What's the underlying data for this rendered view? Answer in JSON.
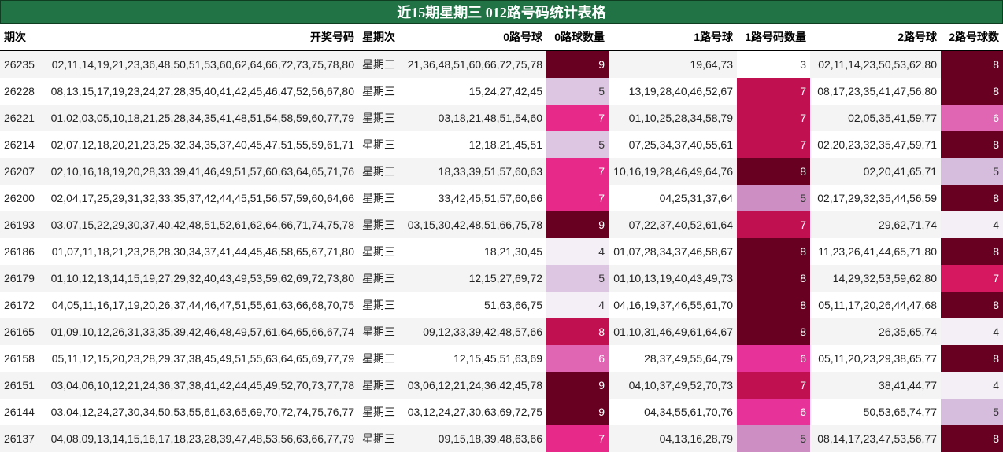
{
  "title": "近15期星期三 012路号码统计表格",
  "headers": [
    "期次",
    "开奖号码",
    "星期次",
    "0路号球",
    "0路球数量",
    "1路号球",
    "1路号码数量",
    "2路号球",
    "2路号球数"
  ],
  "count_colors": {
    "3": "#ffffff",
    "4": "#f4eff7",
    "5": "#dcc6e2",
    "6": "#e066b4",
    "7": "#e7298a",
    "8": "#c0104f",
    "9": "#670021"
  },
  "col2_count_colors": {
    "3": "#ffffff",
    "4": "#f4eff7",
    "5": "#d6bcdd",
    "6": "#e066b4",
    "7": "#d5185f",
    "8": "#670021",
    "9": "#670021"
  },
  "col1_count_colors": {
    "3": "#ffffff",
    "4": "#f4eff7",
    "5": "#cd8ec4",
    "6": "#e7329a",
    "7": "#c0104f",
    "8": "#670021",
    "9": "#670021"
  },
  "rows": [
    {
      "period": "26235",
      "numbers": "02,11,14,19,21,23,36,48,50,51,53,60,62,64,66,72,73,75,78,80",
      "weekday": "星期三",
      "r0": "21,36,48,51,60,66,72,75,78",
      "c0": "9",
      "r1": "19,64,73",
      "c1": "3",
      "r2": "02,11,14,23,50,53,62,80",
      "c2": "8"
    },
    {
      "period": "26228",
      "numbers": "08,13,15,17,19,23,24,27,28,35,40,41,42,45,46,47,52,56,67,80",
      "weekday": "星期三",
      "r0": "15,24,27,42,45",
      "c0": "5",
      "r1": "13,19,28,40,46,52,67",
      "c1": "7",
      "r2": "08,17,23,35,41,47,56,80",
      "c2": "8"
    },
    {
      "period": "26221",
      "numbers": "01,02,03,05,10,18,21,25,28,34,35,41,48,51,54,58,59,60,77,79",
      "weekday": "星期三",
      "r0": "03,18,21,48,51,54,60",
      "c0": "7",
      "r1": "01,10,25,28,34,58,79",
      "c1": "7",
      "r2": "02,05,35,41,59,77",
      "c2": "6"
    },
    {
      "period": "26214",
      "numbers": "02,07,12,18,20,21,23,25,32,34,35,37,40,45,47,51,55,59,61,71",
      "weekday": "星期三",
      "r0": "12,18,21,45,51",
      "c0": "5",
      "r1": "07,25,34,37,40,55,61",
      "c1": "7",
      "r2": "02,20,23,32,35,47,59,71",
      "c2": "8"
    },
    {
      "period": "26207",
      "numbers": "02,10,16,18,19,20,28,33,39,41,46,49,51,57,60,63,64,65,71,76",
      "weekday": "星期三",
      "r0": "18,33,39,51,57,60,63",
      "c0": "7",
      "r1": "10,16,19,28,46,49,64,76",
      "c1": "8",
      "r2": "02,20,41,65,71",
      "c2": "5"
    },
    {
      "period": "26200",
      "numbers": "02,04,17,25,29,31,32,33,35,37,42,44,45,51,56,57,59,60,64,66",
      "weekday": "星期三",
      "r0": "33,42,45,51,57,60,66",
      "c0": "7",
      "r1": "04,25,31,37,64",
      "c1": "5",
      "r2": "02,17,29,32,35,44,56,59",
      "c2": "8"
    },
    {
      "period": "26193",
      "numbers": "03,07,15,22,29,30,37,40,42,48,51,52,61,62,64,66,71,74,75,78",
      "weekday": "星期三",
      "r0": "03,15,30,42,48,51,66,75,78",
      "c0": "9",
      "r1": "07,22,37,40,52,61,64",
      "c1": "7",
      "r2": "29,62,71,74",
      "c2": "4"
    },
    {
      "period": "26186",
      "numbers": "01,07,11,18,21,23,26,28,30,34,37,41,44,45,46,58,65,67,71,80",
      "weekday": "星期三",
      "r0": "18,21,30,45",
      "c0": "4",
      "r1": "01,07,28,34,37,46,58,67",
      "c1": "8",
      "r2": "11,23,26,41,44,65,71,80",
      "c2": "8"
    },
    {
      "period": "26179",
      "numbers": "01,10,12,13,14,15,19,27,29,32,40,43,49,53,59,62,69,72,73,80",
      "weekday": "星期三",
      "r0": "12,15,27,69,72",
      "c0": "5",
      "r1": "01,10,13,19,40,43,49,73",
      "c1": "8",
      "r2": "14,29,32,53,59,62,80",
      "c2": "7"
    },
    {
      "period": "26172",
      "numbers": "04,05,11,16,17,19,20,26,37,44,46,47,51,55,61,63,66,68,70,75",
      "weekday": "星期三",
      "r0": "51,63,66,75",
      "c0": "4",
      "r1": "04,16,19,37,46,55,61,70",
      "c1": "8",
      "r2": "05,11,17,20,26,44,47,68",
      "c2": "8"
    },
    {
      "period": "26165",
      "numbers": "01,09,10,12,26,31,33,35,39,42,46,48,49,57,61,64,65,66,67,74",
      "weekday": "星期三",
      "r0": "09,12,33,39,42,48,57,66",
      "c0": "8",
      "r1": "01,10,31,46,49,61,64,67",
      "c1": "8",
      "r2": "26,35,65,74",
      "c2": "4"
    },
    {
      "period": "26158",
      "numbers": "05,11,12,15,20,23,28,29,37,38,45,49,51,55,63,64,65,69,77,79",
      "weekday": "星期三",
      "r0": "12,15,45,51,63,69",
      "c0": "6",
      "r1": "28,37,49,55,64,79",
      "c1": "6",
      "r2": "05,11,20,23,29,38,65,77",
      "c2": "8"
    },
    {
      "period": "26151",
      "numbers": "03,04,06,10,12,21,24,36,37,38,41,42,44,45,49,52,70,73,77,78",
      "weekday": "星期三",
      "r0": "03,06,12,21,24,36,42,45,78",
      "c0": "9",
      "r1": "04,10,37,49,52,70,73",
      "c1": "7",
      "r2": "38,41,44,77",
      "c2": "4"
    },
    {
      "period": "26144",
      "numbers": "03,04,12,24,27,30,34,50,53,55,61,63,65,69,70,72,74,75,76,77",
      "weekday": "星期三",
      "r0": "03,12,24,27,30,63,69,72,75",
      "c0": "9",
      "r1": "04,34,55,61,70,76",
      "c1": "6",
      "r2": "50,53,65,74,77",
      "c2": "5"
    },
    {
      "period": "26137",
      "numbers": "04,08,09,13,14,15,16,17,18,23,28,39,47,48,53,56,63,66,77,79",
      "weekday": "星期三",
      "r0": "09,15,18,39,48,63,66",
      "c0": "7",
      "r1": "04,13,16,28,79",
      "c1": "5",
      "r2": "08,14,17,23,47,53,56,77",
      "c2": "8"
    }
  ]
}
